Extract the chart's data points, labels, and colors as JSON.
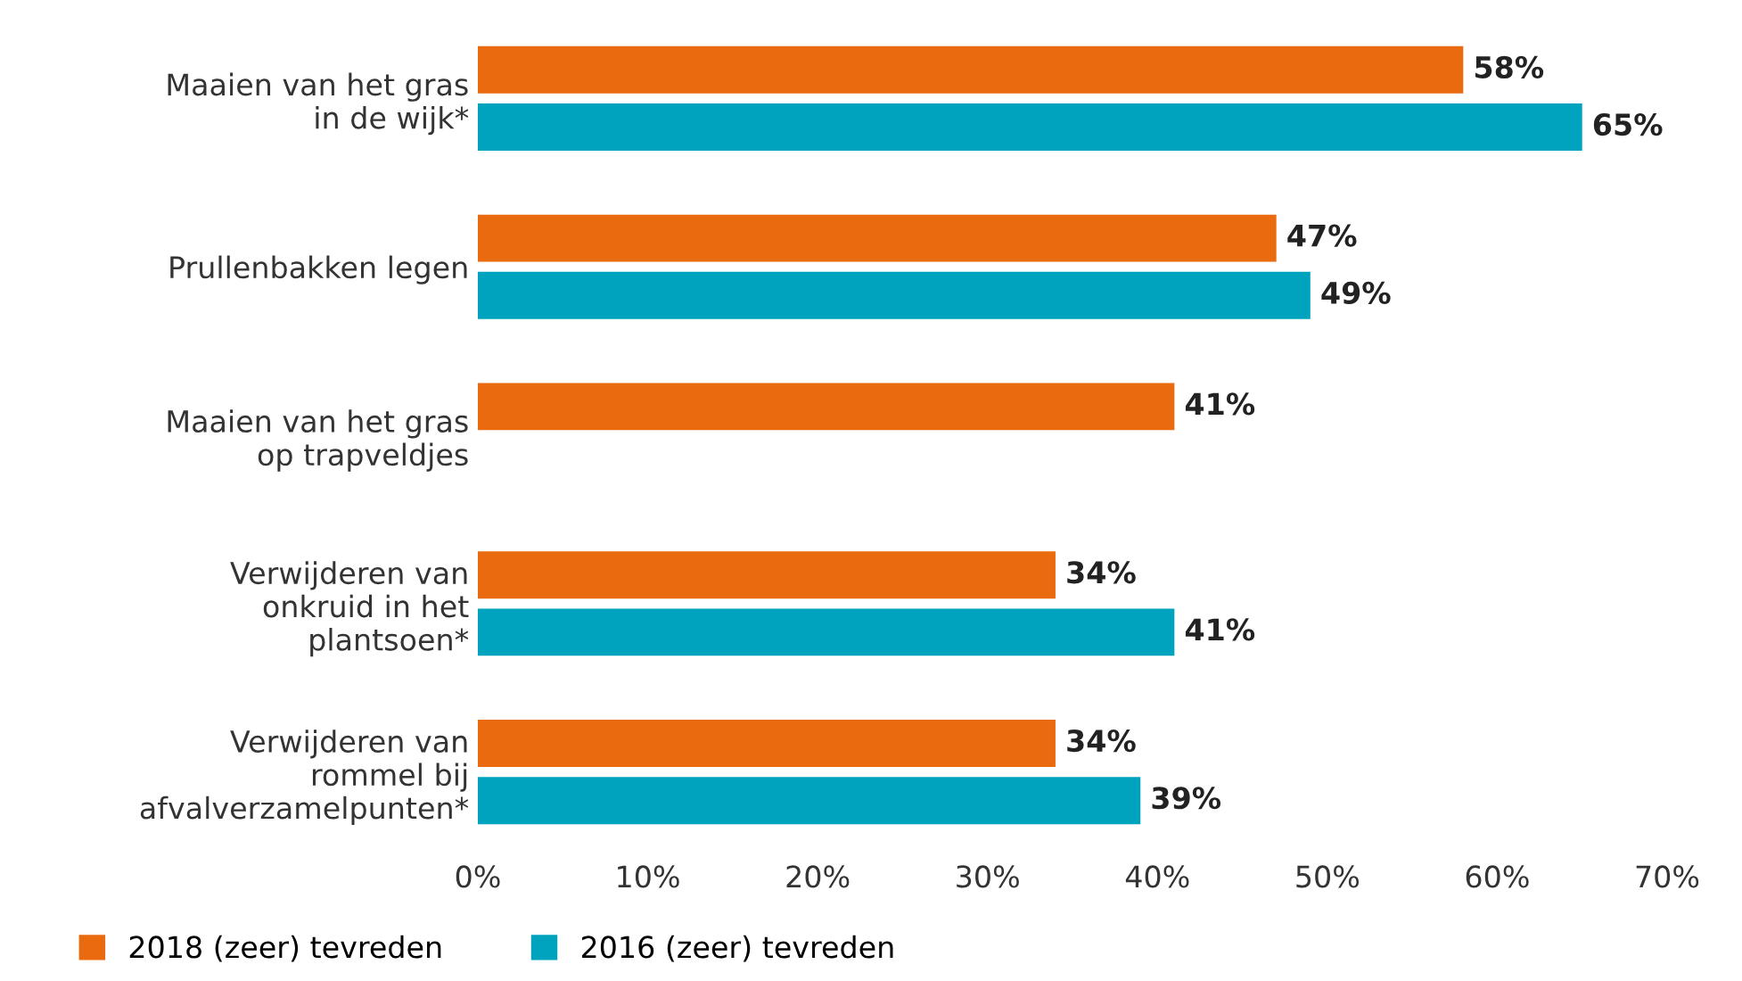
{
  "chart_data": {
    "type": "bar",
    "orientation": "horizontal",
    "categories": [
      "Maaien van het gras\nin de wijk*",
      "Prullenbakken legen",
      "Maaien van het gras\nop trapveldjes",
      "Verwijderen van\nonkruid in het\nplantsoen*",
      "Verwijderen van\nrommel bij\nafvalverzamelpunten*"
    ],
    "series": [
      {
        "name": "2018 (zeer) tevreden",
        "color": "#ea6a0f",
        "values": [
          58,
          47,
          41,
          34,
          34
        ],
        "value_labels": [
          "58%",
          "47%",
          "41%",
          "34%",
          "34%"
        ]
      },
      {
        "name": "2016 (zeer) tevreden",
        "color": "#00a3be",
        "values": [
          65,
          49,
          null,
          41,
          39
        ],
        "value_labels": [
          "65%",
          "49%",
          null,
          "41%",
          "39%"
        ]
      }
    ],
    "xlim": [
      0,
      70
    ],
    "xticks": [
      {
        "value": 0,
        "label": "0%"
      },
      {
        "value": 10,
        "label": "10%"
      },
      {
        "value": 20,
        "label": "20%"
      },
      {
        "value": 30,
        "label": "30%"
      },
      {
        "value": 40,
        "label": "40%"
      },
      {
        "value": 50,
        "label": "50%"
      },
      {
        "value": 60,
        "label": "60%"
      },
      {
        "value": 70,
        "label": "70%"
      }
    ],
    "grid": false,
    "legend": "bottom left"
  }
}
